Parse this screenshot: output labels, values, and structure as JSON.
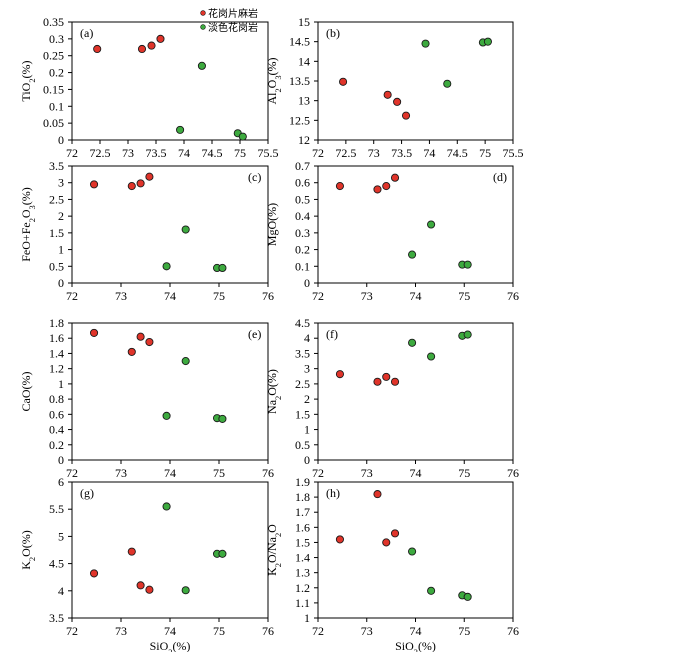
{
  "legend": {
    "items": [
      {
        "label": "花岗片麻岩",
        "color": "#e0342a"
      },
      {
        "label": "淡色花岗岩",
        "color": "#3daa3f"
      }
    ]
  },
  "colors": {
    "gneiss": "#e0342a",
    "leucogranite": "#3daa3f",
    "axis": "#000000"
  },
  "chart_data": [
    {
      "id": "a",
      "panel_label": "(a)",
      "type": "scatter",
      "xlabel": "",
      "ylabel": "TiO2(%)",
      "xlim": [
        72,
        75.5
      ],
      "ylim": [
        0,
        0.35
      ],
      "xticks": [
        "72",
        "72.5",
        "73",
        "73.5",
        "74",
        "74.5",
        "75",
        "75.5"
      ],
      "yticks": [
        "0",
        "0.05",
        "0.1",
        "0.15",
        "0.2",
        "0.25",
        "0.3",
        "0.35"
      ],
      "series": [
        {
          "name": "花岗片麻岩",
          "points": [
            [
              72.45,
              0.27
            ],
            [
              73.25,
              0.27
            ],
            [
              73.42,
              0.28
            ],
            [
              73.58,
              0.3
            ]
          ]
        },
        {
          "name": "淡色花岗岩",
          "points": [
            [
              73.93,
              0.03
            ],
            [
              74.32,
              0.22
            ],
            [
              74.96,
              0.02
            ],
            [
              75.05,
              0.01
            ]
          ]
        }
      ]
    },
    {
      "id": "b",
      "panel_label": "(b)",
      "type": "scatter",
      "xlabel": "",
      "ylabel": "Al2O3(%)",
      "xlim": [
        72,
        75.5
      ],
      "ylim": [
        12,
        15
      ],
      "xticks": [
        "72",
        "72.5",
        "73",
        "73.5",
        "74",
        "74.5",
        "75",
        "75.5"
      ],
      "yticks": [
        "12",
        "12.5",
        "13",
        "13.5",
        "14",
        "14.5",
        "15"
      ],
      "series": [
        {
          "name": "花岗片麻岩",
          "points": [
            [
              72.45,
              13.48
            ],
            [
              73.25,
              13.15
            ],
            [
              73.42,
              12.97
            ],
            [
              73.58,
              12.62
            ]
          ]
        },
        {
          "name": "淡色花岗岩",
          "points": [
            [
              73.93,
              14.45
            ],
            [
              74.32,
              13.43
            ],
            [
              74.96,
              14.48
            ],
            [
              75.05,
              14.5
            ]
          ]
        }
      ]
    },
    {
      "id": "c",
      "panel_label": "(c)",
      "type": "scatter",
      "xlabel": "",
      "ylabel": "FeO+Fe2O3(%)",
      "xlim": [
        72,
        76
      ],
      "ylim": [
        0,
        3.5
      ],
      "xticks": [
        "72",
        "73",
        "74",
        "75",
        "76"
      ],
      "yticks": [
        "0",
        "0.5",
        "1",
        "1.5",
        "2",
        "2.5",
        "3",
        "3.5"
      ],
      "series": [
        {
          "name": "花岗片麻岩",
          "points": [
            [
              72.45,
              2.95
            ],
            [
              73.22,
              2.9
            ],
            [
              73.4,
              2.98
            ],
            [
              73.58,
              3.18
            ]
          ]
        },
        {
          "name": "淡色花岗岩",
          "points": [
            [
              73.93,
              0.5
            ],
            [
              74.32,
              1.6
            ],
            [
              74.96,
              0.45
            ],
            [
              75.07,
              0.45
            ]
          ]
        }
      ]
    },
    {
      "id": "d",
      "panel_label": "(d)",
      "type": "scatter",
      "xlabel": "",
      "ylabel": "MgO(%)",
      "xlim": [
        72,
        76
      ],
      "ylim": [
        0,
        0.7
      ],
      "xticks": [
        "72",
        "73",
        "74",
        "75",
        "76"
      ],
      "yticks": [
        "0",
        "0.1",
        "0.2",
        "0.3",
        "0.4",
        "0.5",
        "0.6",
        "0.7"
      ],
      "series": [
        {
          "name": "花岗片麻岩",
          "points": [
            [
              72.45,
              0.58
            ],
            [
              73.22,
              0.56
            ],
            [
              73.4,
              0.58
            ],
            [
              73.58,
              0.63
            ]
          ]
        },
        {
          "name": "淡色花岗岩",
          "points": [
            [
              73.93,
              0.17
            ],
            [
              74.32,
              0.35
            ],
            [
              74.96,
              0.11
            ],
            [
              75.07,
              0.11
            ]
          ]
        }
      ]
    },
    {
      "id": "e",
      "panel_label": "(e)",
      "type": "scatter",
      "xlabel": "",
      "ylabel": "CaO(%)",
      "xlim": [
        72,
        76
      ],
      "ylim": [
        0,
        1.8
      ],
      "xticks": [
        "72",
        "73",
        "74",
        "75",
        "76"
      ],
      "yticks": [
        "0",
        "0.2",
        "0.4",
        "0.6",
        "0.8",
        "1",
        "1.2",
        "1.4",
        "1.6",
        "1.8"
      ],
      "series": [
        {
          "name": "花岗片麻岩",
          "points": [
            [
              72.45,
              1.67
            ],
            [
              73.22,
              1.42
            ],
            [
              73.4,
              1.62
            ],
            [
              73.58,
              1.55
            ]
          ]
        },
        {
          "name": "淡色花岗岩",
          "points": [
            [
              73.93,
              0.58
            ],
            [
              74.32,
              1.3
            ],
            [
              74.96,
              0.55
            ],
            [
              75.07,
              0.54
            ]
          ]
        }
      ]
    },
    {
      "id": "f",
      "panel_label": "(f)",
      "type": "scatter",
      "xlabel": "",
      "ylabel": "Na2O(%)",
      "xlim": [
        72,
        76
      ],
      "ylim": [
        0,
        4.5
      ],
      "xticks": [
        "72",
        "73",
        "74",
        "75",
        "76"
      ],
      "yticks": [
        "0",
        "0.5",
        "1",
        "1.5",
        "2",
        "2.5",
        "3",
        "3.5",
        "4",
        "4.5"
      ],
      "series": [
        {
          "name": "花岗片麻岩",
          "points": [
            [
              72.45,
              2.82
            ],
            [
              73.22,
              2.57
            ],
            [
              73.4,
              2.73
            ],
            [
              73.58,
              2.57
            ]
          ]
        },
        {
          "name": "淡色花岗岩",
          "points": [
            [
              73.93,
              3.85
            ],
            [
              74.32,
              3.4
            ],
            [
              74.96,
              4.08
            ],
            [
              75.07,
              4.12
            ]
          ]
        }
      ]
    },
    {
      "id": "g",
      "panel_label": "(g)",
      "type": "scatter",
      "xlabel": "SiO2(%)",
      "ylabel": "K2O(%)",
      "xlim": [
        72,
        76
      ],
      "ylim": [
        3.5,
        6
      ],
      "xticks": [
        "72",
        "73",
        "74",
        "75",
        "76"
      ],
      "yticks": [
        "3.5",
        "4",
        "4.5",
        "5",
        "5.5",
        "6"
      ],
      "series": [
        {
          "name": "花岗片麻岩",
          "points": [
            [
              72.45,
              4.32
            ],
            [
              73.22,
              4.72
            ],
            [
              73.4,
              4.1
            ],
            [
              73.58,
              4.02
            ]
          ]
        },
        {
          "name": "淡色花岗岩",
          "points": [
            [
              73.93,
              5.55
            ],
            [
              74.32,
              4.01
            ],
            [
              74.96,
              4.68
            ],
            [
              75.07,
              4.68
            ]
          ]
        }
      ]
    },
    {
      "id": "h",
      "panel_label": "(h)",
      "type": "scatter",
      "xlabel": "SiO2(%)",
      "ylabel": "K2O/Na2O",
      "xlim": [
        72,
        76
      ],
      "ylim": [
        1,
        1.9
      ],
      "xticks": [
        "72",
        "73",
        "74",
        "75",
        "76"
      ],
      "yticks": [
        "1",
        "1.1",
        "1.2",
        "1.3",
        "1.4",
        "1.5",
        "1.6",
        "1.7",
        "1.8",
        "1.9"
      ],
      "series": [
        {
          "name": "花岗片麻岩",
          "points": [
            [
              72.45,
              1.52
            ],
            [
              73.22,
              1.82
            ],
            [
              73.4,
              1.5
            ],
            [
              73.58,
              1.56
            ]
          ]
        },
        {
          "name": "淡色花岗岩",
          "points": [
            [
              73.93,
              1.44
            ],
            [
              74.32,
              1.18
            ],
            [
              74.96,
              1.15
            ],
            [
              75.07,
              1.14
            ]
          ]
        }
      ]
    }
  ]
}
